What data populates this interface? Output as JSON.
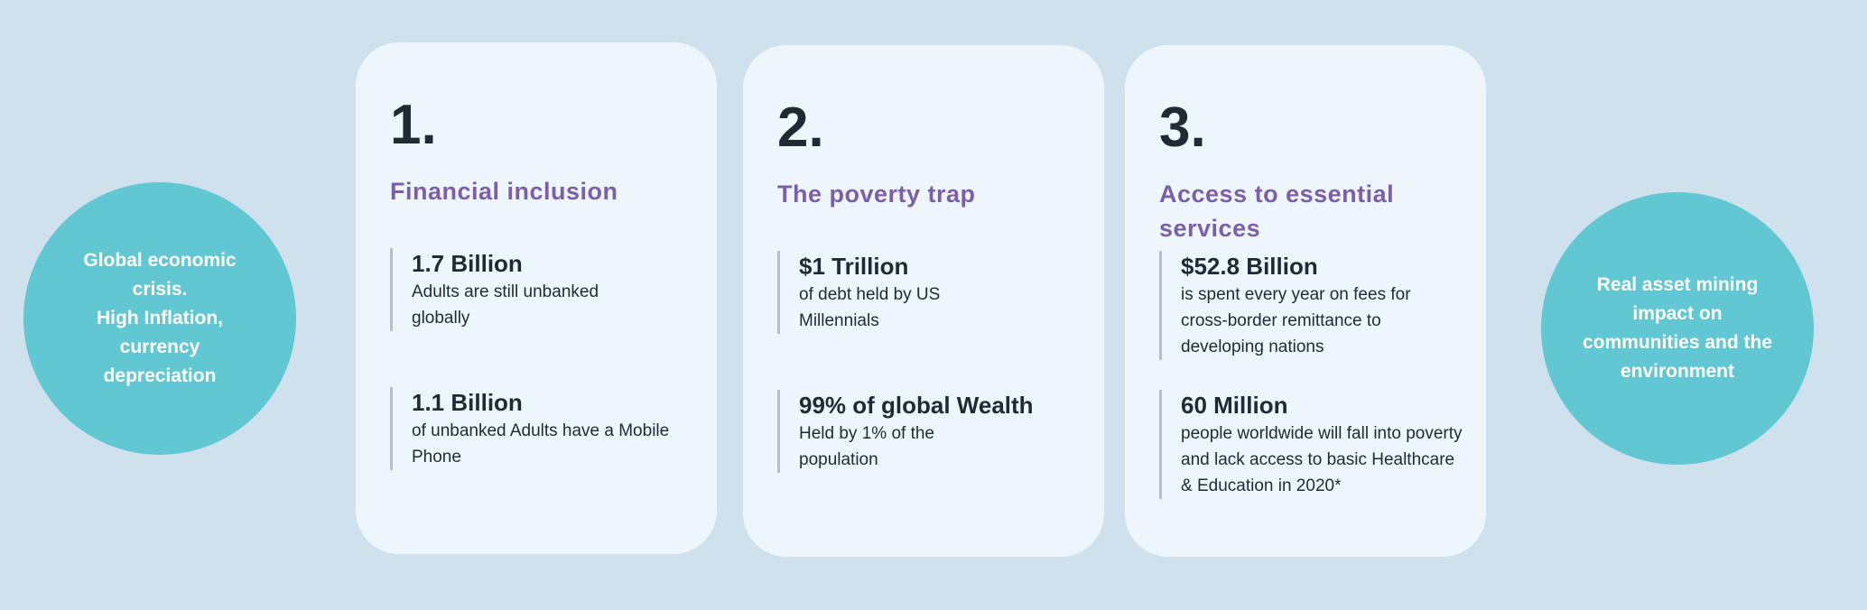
{
  "left_circle": {
    "text": "Global economic\ncrisis.\nHigh Inflation,\ncurrency\ndepreciation"
  },
  "right_circle": {
    "text": "Real asset  mining\nimpact on\ncommunities and the\nenvironment"
  },
  "cards": [
    {
      "number": "1.",
      "title": "Financial inclusion",
      "stats": [
        {
          "value": "1.7 Billion",
          "desc": "Adults are still unbanked globally"
        },
        {
          "value": "1.1 Billion",
          "desc": "of unbanked Adults have a Mobile Phone"
        }
      ]
    },
    {
      "number": "2.",
      "title": "The poverty trap",
      "stats": [
        {
          "value": "$1 Trillion",
          "desc": "of debt held by US Millennials"
        },
        {
          "value": "99% of global Wealth",
          "desc": "Held by 1% of the population"
        }
      ]
    },
    {
      "number": "3.",
      "title": "Access to essential services",
      "stats": [
        {
          "value": "$52.8 Billion",
          "desc": "is spent every year on fees for cross-border remittance to developing nations"
        },
        {
          "value": "60 Million",
          "desc": "people worldwide will fall into poverty and lack access to basic Healthcare & Education in 2020*"
        }
      ]
    }
  ],
  "colors": {
    "background": "#cfe1ec",
    "card": "#ecf6fb",
    "circle": "#61c7d3",
    "accent": "#7d5ea8",
    "text": "#1e2b35"
  }
}
